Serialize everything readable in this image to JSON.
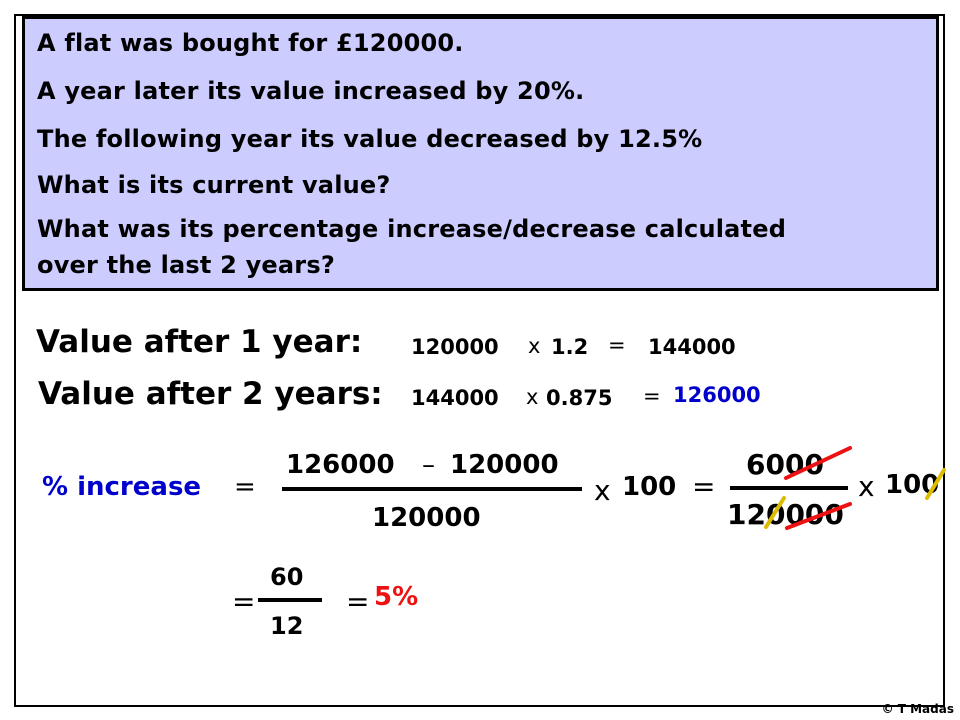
{
  "question": {
    "lines": [
      "A flat was bought for £120000.",
      "A year later its value increased by 20%.",
      "The following year its value decreased by 12.5%",
      "What is its current value?",
      "What was its percentage increase/decrease calculated",
      "over the last 2 years?"
    ]
  },
  "solution": {
    "year1": {
      "label": "Value after 1 year:",
      "a": "120000",
      "times": "x",
      "b": "1.2",
      "equals": "=",
      "result": "144000"
    },
    "year2": {
      "label": "Value after 2 years:",
      "a": "144000",
      "times": "x",
      "b": "0.875",
      "equals": "=",
      "result": "126000"
    },
    "percent": {
      "label": "% increase",
      "equals": "=",
      "num_a": "126000",
      "minus": "–",
      "num_b": "120000",
      "denominator": "120000",
      "times": "x",
      "hundred": "100",
      "equals2": "=",
      "num2": "6000",
      "den2": "120000",
      "times2": "x",
      "hundred2": "100",
      "equals3": "=",
      "num3": "60",
      "den3": "12",
      "equals4": "=",
      "answer": "5%"
    }
  },
  "colors": {
    "box": "#ccccff",
    "blue": "#0000cc",
    "red": "#ee1111"
  },
  "footer": {
    "copyright": "© T Madas"
  }
}
